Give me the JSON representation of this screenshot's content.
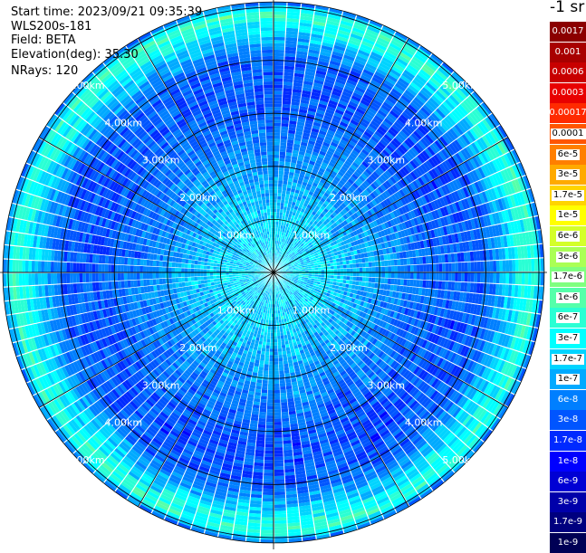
{
  "info": {
    "start_time": "Start time: 2023/09/21 09:35:39",
    "instrument": "WLS200s-181",
    "field": "Field: BETA",
    "elevation": "Elevation(deg): 35.30",
    "nrays": "NRays: 120"
  },
  "colorbar": {
    "unit": "-1 sr",
    "labels": [
      "0.0017",
      "0.001",
      "0.0006",
      "0.0003",
      "0.00017",
      "0.0001",
      "6e-5",
      "3e-5",
      "1.7e-5",
      "1e-5",
      "6e-6",
      "3e-6",
      "1.7e-6",
      "1e-6",
      "6e-7",
      "3e-7",
      "1.7e-7",
      "1e-7",
      "6e-8",
      "3e-8",
      "1.7e-8",
      "1e-8",
      "6e-9",
      "3e-9",
      "1.7e-9",
      "1e-9"
    ],
    "colors": [
      "#8b0000",
      "#a80000",
      "#c80000",
      "#e80000",
      "#ff2a00",
      "#ff5500",
      "#ff7f00",
      "#ffaa00",
      "#ffd400",
      "#ffff00",
      "#d4ff2a",
      "#aaff55",
      "#7fff7f",
      "#55ffaa",
      "#2affd4",
      "#00ffff",
      "#00d4ff",
      "#00aaff",
      "#007fff",
      "#0055ff",
      "#002aff",
      "#0000ff",
      "#0000d4",
      "#0000aa",
      "#00007f",
      "#000055"
    ]
  },
  "chart_data": {
    "type": "heatmap",
    "projection": "polar PPI scan",
    "field": "BETA",
    "elevation_deg": 35.3,
    "n_rays": 120,
    "range_rings_km": [
      1,
      2,
      3,
      4,
      5
    ],
    "ring_labels": [
      "1.00km",
      "2.00km",
      "3.00km",
      "4.00km",
      "5.00km"
    ],
    "max_range_km": 5.1,
    "spoke_step_deg": 30,
    "value_profile": {
      "description": "approximate backscatter by range",
      "range_km": [
        0.0,
        1.0,
        1.7,
        2.5,
        3.3,
        4.0,
        4.6,
        4.9,
        5.1
      ],
      "log10_beta": [
        -6.7,
        -6.75,
        -7.0,
        -7.3,
        -7.55,
        -7.5,
        -6.6,
        -6.2,
        -7.4
      ]
    }
  }
}
